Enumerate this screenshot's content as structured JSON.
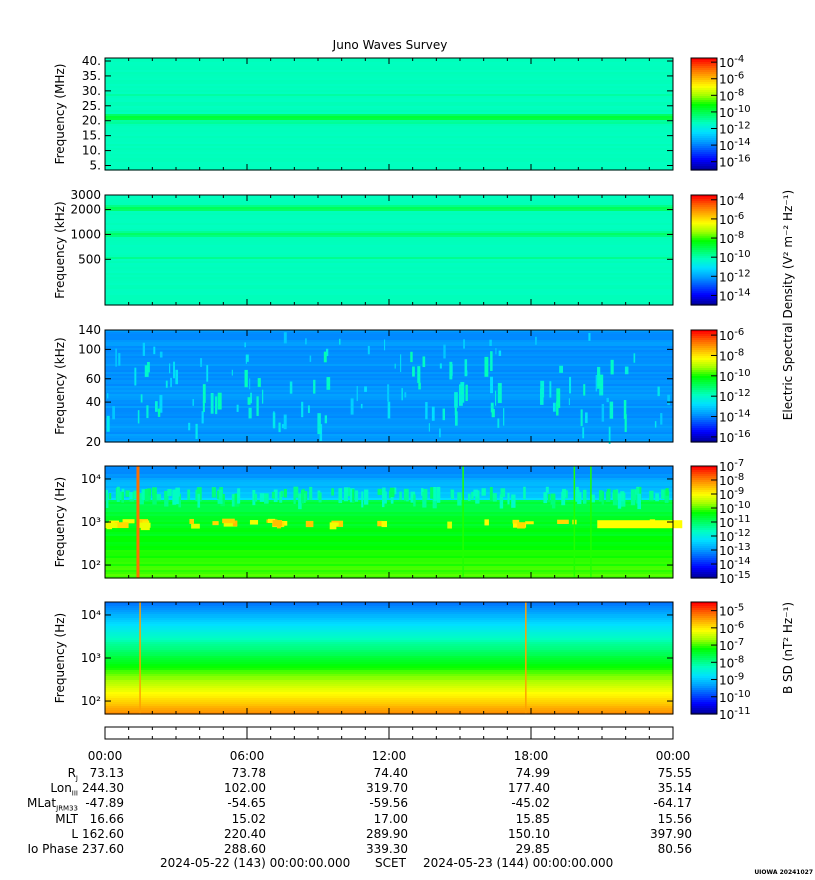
{
  "title": "Juno Waves Survey",
  "colors": {
    "colormap": [
      "#0000a0",
      "#0000ff",
      "#0050ff",
      "#00a0ff",
      "#00e0ff",
      "#00ffc0",
      "#00ff60",
      "#00ff00",
      "#a0ff00",
      "#ffff00",
      "#ffb000",
      "#ff6000",
      "#ff0000"
    ]
  },
  "chart_data": [
    {
      "type": "heatmap",
      "panel": 1,
      "ylabel": "Frequency (MHz)",
      "yscale": "linear",
      "ylim": [
        3.5,
        41
      ],
      "yticks": [
        {
          "v": 5,
          "t": "5."
        },
        {
          "v": 10,
          "t": "10."
        },
        {
          "v": 15,
          "t": "15."
        },
        {
          "v": 20,
          "t": "20."
        },
        {
          "v": 25,
          "t": "25."
        },
        {
          "v": 30,
          "t": "30."
        },
        {
          "v": 35,
          "t": "35."
        },
        {
          "v": 40,
          "t": "40."
        }
      ],
      "background_level": 0.42,
      "bands": [
        {
          "y": 21.0,
          "level": 0.55,
          "width": 0.9
        },
        {
          "y": 19.5,
          "level": 0.47,
          "width": 0.5
        },
        {
          "y": 28.5,
          "level": 0.45,
          "width": 0.4
        }
      ],
      "colorbar": {
        "exponents": [
          -4,
          -6,
          -8,
          -10,
          -12,
          -14,
          -16
        ],
        "range": [
          -17,
          -3.5
        ]
      }
    },
    {
      "type": "heatmap",
      "panel": 2,
      "ylabel": "Frequency (kHz)",
      "yscale": "log",
      "ylim": [
        140,
        3000
      ],
      "yticks": [
        {
          "v": 500,
          "t": "500"
        },
        {
          "v": 1000,
          "t": "1000"
        },
        {
          "v": 2000,
          "t": "2000"
        },
        {
          "v": 3000,
          "t": "3000"
        }
      ],
      "background_level": 0.42,
      "bands": [
        {
          "y": 2050,
          "level": 0.52,
          "width": 0.035
        },
        {
          "y": 1000,
          "level": 0.5,
          "width": 0.03
        },
        {
          "y": 520,
          "level": 0.46,
          "width": 0.02
        }
      ],
      "colorbar": {
        "exponents": [
          -4,
          -6,
          -8,
          -10,
          -12,
          -14
        ],
        "range": [
          -15,
          -3.5
        ]
      }
    },
    {
      "type": "heatmap",
      "panel": 3,
      "ylabel": "Frequency (kHz)",
      "yscale": "log",
      "ylim": [
        20,
        140
      ],
      "yticks": [
        {
          "v": 20,
          "t": "20"
        },
        {
          "v": 40,
          "t": "40"
        },
        {
          "v": 60,
          "t": "60"
        },
        {
          "v": 100,
          "t": "100"
        },
        {
          "v": 140,
          "t": "140"
        }
      ],
      "background_level": 0.24,
      "bursts_x_hours": [
        2.1,
        4.4,
        6.2,
        9.0,
        13.2,
        14.6,
        15.1,
        16.4,
        18.8,
        20.5,
        21.6
      ],
      "colorbar": {
        "exponents": [
          -6,
          -8,
          -10,
          -12,
          -14,
          -16
        ],
        "range": [
          -16.5,
          -5.5
        ]
      }
    },
    {
      "type": "heatmap",
      "panel": 4,
      "ylabel": "Frequency (Hz)",
      "yscale": "log",
      "ylim": [
        50,
        20000
      ],
      "yticks": [
        {
          "v": 100,
          "t": "10²"
        },
        {
          "v": 1000,
          "t": "10³"
        },
        {
          "v": 10000,
          "t": "10⁴"
        }
      ],
      "cutoff_hz": 3500,
      "spikes_x_hours": [
        1.33,
        20.5,
        15.1,
        19.8
      ],
      "colorbar": {
        "exponents": [
          -7,
          -8,
          -9,
          -10,
          -11,
          -12,
          -13,
          -14,
          -15
        ],
        "range": [
          -15,
          -7
        ]
      }
    },
    {
      "type": "heatmap",
      "panel": 5,
      "ylabel": "Frequency (Hz)",
      "yscale": "log",
      "ylim": [
        50,
        20000
      ],
      "yticks": [
        {
          "v": 100,
          "t": "10²"
        },
        {
          "v": 1000,
          "t": "10³"
        },
        {
          "v": 10000,
          "t": "10⁴"
        }
      ],
      "spikes_x_hours": [
        1.45,
        17.75
      ],
      "colorbar": {
        "exponents": [
          -5,
          -6,
          -7,
          -8,
          -9,
          -10,
          -11
        ],
        "range": [
          -11,
          -4.5
        ]
      }
    }
  ],
  "colorbar_labels": {
    "electric": "Electric Spectral Density (V² m⁻² Hz⁻¹)",
    "magnetic": "B SD (nT² Hz⁻¹)"
  },
  "time_axis": {
    "ticks": [
      "00:00",
      "06:00",
      "12:00",
      "18:00",
      "00:00"
    ],
    "span_hours": 24
  },
  "ephemeris": [
    {
      "label": "R",
      "sub": "J",
      "values": [
        "73.13",
        "73.78",
        "74.40",
        "74.99",
        "75.55"
      ]
    },
    {
      "label": "Lon",
      "sub": "III",
      "values": [
        "244.30",
        "102.00",
        "319.70",
        "177.40",
        "35.14"
      ]
    },
    {
      "label": "MLat",
      "sub": "JRM33",
      "values": [
        "-47.89",
        "-54.65",
        "-59.56",
        "-45.02",
        "-64.17"
      ]
    },
    {
      "label": "MLT",
      "sub": "",
      "values": [
        "16.66",
        "15.02",
        "17.00",
        "15.85",
        "15.56"
      ]
    },
    {
      "label": "L",
      "sub": "",
      "values": [
        "162.60",
        "220.40",
        "289.90",
        "150.10",
        "397.90"
      ]
    },
    {
      "label": "Io Phase",
      "sub": "",
      "values": [
        "237.60",
        "288.60",
        "339.30",
        "29.85",
        "80.56"
      ]
    }
  ],
  "footer": {
    "start": "2024-05-22 (143) 00:00:00.000",
    "scet": "SCET",
    "end": "2024-05-23 (144) 00:00:00.000"
  },
  "version": "UIOWA 20241027"
}
